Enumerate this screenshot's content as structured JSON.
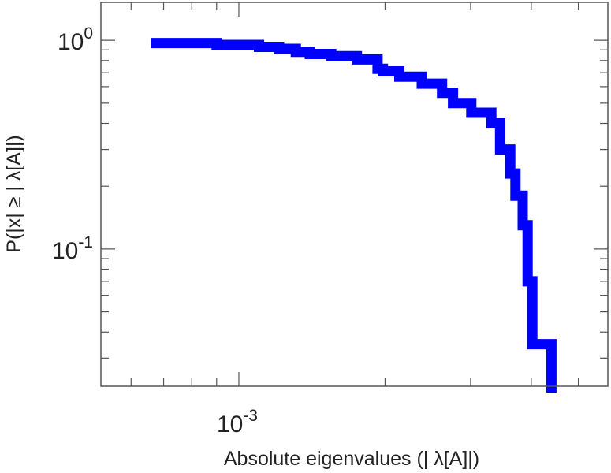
{
  "chart_data": {
    "type": "line",
    "plot_style": "step",
    "xscale": "log",
    "yscale": "log",
    "xlim": [
      0.00052,
      0.00575
    ],
    "ylim": [
      0.022,
      1.52
    ],
    "xlabel": "Absolute eigenvalues (|     λ[A]|)",
    "ylabel": "P(|x|  ≥ | λ[A]|)",
    "grid": false,
    "colors": {
      "series": "#0000ff",
      "axes": "#555555",
      "text": "#222222"
    },
    "x_ticks": [
      {
        "value": 0.001,
        "base": "10",
        "exp": "-3"
      }
    ],
    "y_ticks": [
      {
        "value": 1,
        "base": "10",
        "exp": "0"
      },
      {
        "value": 0.1,
        "base": "10",
        "exp": "-1"
      }
    ],
    "series": [
      {
        "color": "#0000ff",
        "x": [
          0.00066,
          0.0009,
          0.0011,
          0.00121,
          0.00131,
          0.0014,
          0.00155,
          0.00175,
          0.00193,
          0.00198,
          0.00214,
          0.00238,
          0.00262,
          0.00276,
          0.00301,
          0.00331,
          0.00345,
          0.00362,
          0.00371,
          0.00384,
          0.00393,
          0.00402,
          0.0044
        ],
        "y": [
          0.97,
          0.95,
          0.93,
          0.91,
          0.88,
          0.86,
          0.84,
          0.81,
          0.73,
          0.71,
          0.67,
          0.62,
          0.56,
          0.5,
          0.45,
          0.4,
          0.3,
          0.23,
          0.18,
          0.13,
          0.07,
          0.035,
          0.022
        ]
      }
    ]
  }
}
